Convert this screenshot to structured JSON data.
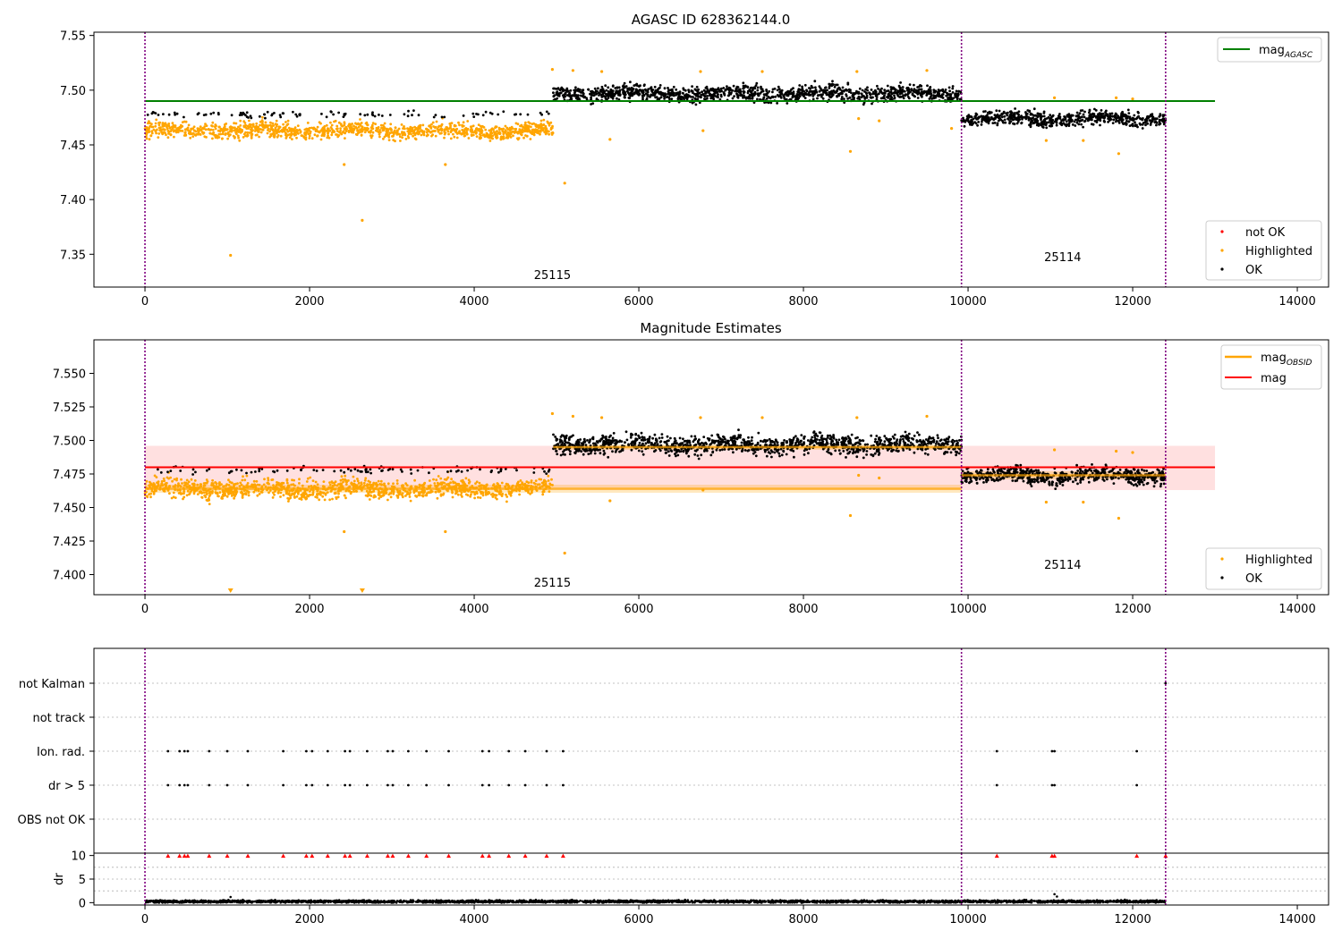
{
  "chart_data": [
    {
      "type": "scatter",
      "title": "AGASC ID 628362144.0",
      "xlabel": "",
      "ylabel": "",
      "xlim": [
        -620,
        14380
      ],
      "ylim": [
        7.32,
        7.553
      ],
      "xticks": [
        0,
        2000,
        4000,
        6000,
        8000,
        10000,
        12000,
        14000
      ],
      "xtick_labels": [
        "0",
        "2000",
        "4000",
        "6000",
        "8000",
        "10000",
        "12000",
        "14000"
      ],
      "yticks": [
        7.35,
        7.4,
        7.45,
        7.5,
        7.55
      ],
      "ytick_labels": [
        "7.35",
        "7.40",
        "7.45",
        "7.50",
        "7.55"
      ],
      "vlines": [
        0,
        9920,
        12400
      ],
      "obsid_labels": [
        {
          "x": 4950,
          "text": "25115"
        },
        {
          "x": 11150,
          "text": "25114"
        }
      ],
      "reference_lines": [
        {
          "name": "mag_AGASC",
          "label_main": "mag",
          "label_sub": "AGASC",
          "value": 7.49,
          "x": [
            0,
            13000
          ],
          "color": "#008000"
        }
      ],
      "segments": [
        {
          "x_range": [
            0,
            4960
          ],
          "center": 7.463,
          "spread": 0.005,
          "color": "orange",
          "upper_black": 7.478
        },
        {
          "x_range": [
            4960,
            9920
          ],
          "center": 7.497,
          "spread": 0.005,
          "color": "black"
        },
        {
          "x_range": [
            9920,
            12400
          ],
          "center": 7.474,
          "spread": 0.0045,
          "color": "black"
        }
      ],
      "highlighted_outliers": [
        [
          1040,
          7.349
        ],
        [
          2640,
          7.381
        ],
        [
          2420,
          7.432
        ],
        [
          3650,
          7.432
        ],
        [
          5100,
          7.415
        ],
        [
          5650,
          7.455
        ],
        [
          6780,
          7.463
        ],
        [
          8570,
          7.444
        ],
        [
          8670,
          7.474
        ],
        [
          8920,
          7.472
        ],
        [
          9800,
          7.465
        ],
        [
          10950,
          7.454
        ],
        [
          11400,
          7.454
        ],
        [
          11830,
          7.442
        ],
        [
          4950,
          7.519
        ],
        [
          5200,
          7.518
        ],
        [
          5550,
          7.517
        ],
        [
          6750,
          7.517
        ],
        [
          7500,
          7.517
        ],
        [
          8650,
          7.517
        ],
        [
          9500,
          7.518
        ],
        [
          11050,
          7.493
        ],
        [
          11800,
          7.493
        ],
        [
          12000,
          7.492
        ]
      ],
      "legend_points": {
        "placement": "lower right",
        "entries": [
          {
            "label": "not OK",
            "color": "#ff0000"
          },
          {
            "label": "Highlighted",
            "color": "#ffa500"
          },
          {
            "label": "OK",
            "color": "#000000"
          }
        ]
      },
      "legend_lines": {
        "placement": "upper right"
      },
      "grid": false
    },
    {
      "type": "scatter",
      "title": "Magnitude Estimates",
      "xlabel": "",
      "ylabel": "",
      "xlim": [
        -620,
        14380
      ],
      "ylim": [
        7.385,
        7.575
      ],
      "xticks": [
        0,
        2000,
        4000,
        6000,
        8000,
        10000,
        12000,
        14000
      ],
      "xtick_labels": [
        "0",
        "2000",
        "4000",
        "6000",
        "8000",
        "10000",
        "12000",
        "14000"
      ],
      "yticks": [
        7.4,
        7.425,
        7.45,
        7.475,
        7.5,
        7.525,
        7.55
      ],
      "ytick_labels": [
        "7.400",
        "7.425",
        "7.450",
        "7.475",
        "7.500",
        "7.525",
        "7.550"
      ],
      "vlines": [
        0,
        9920,
        12400
      ],
      "obsid_labels": [
        {
          "x": 4950,
          "text": "25115"
        },
        {
          "x": 11150,
          "text": "25114"
        }
      ],
      "mag": {
        "value": 7.48,
        "band": [
          7.463,
          7.496
        ],
        "x": [
          0,
          13000
        ],
        "color": "#ff0000"
      },
      "mag_obsid": [
        {
          "x": [
            0,
            9920
          ],
          "value": 7.464,
          "band": [
            7.461,
            7.467
          ]
        },
        {
          "x": [
            4960,
            9920
          ],
          "value": 7.495,
          "band": [
            7.493,
            7.497
          ]
        },
        {
          "x": [
            9920,
            12400
          ],
          "value": 7.474,
          "band": [
            7.471,
            7.477
          ]
        }
      ],
      "segments": [
        {
          "x_range": [
            0,
            4960
          ],
          "center": 7.464,
          "spread": 0.005,
          "color": "orange",
          "upper_black": 7.478
        },
        {
          "x_range": [
            4960,
            9920
          ],
          "center": 7.497,
          "spread": 0.005,
          "color": "black"
        },
        {
          "x_range": [
            9920,
            12400
          ],
          "center": 7.474,
          "spread": 0.0045,
          "color": "black"
        }
      ],
      "highlighted_outliers": [
        [
          2420,
          7.432
        ],
        [
          3650,
          7.432
        ],
        [
          5100,
          7.416
        ],
        [
          5650,
          7.455
        ],
        [
          6780,
          7.463
        ],
        [
          8570,
          7.444
        ],
        [
          8670,
          7.474
        ],
        [
          8920,
          7.472
        ],
        [
          10950,
          7.454
        ],
        [
          11400,
          7.454
        ],
        [
          11830,
          7.442
        ],
        [
          4950,
          7.52
        ],
        [
          5200,
          7.518
        ],
        [
          5550,
          7.517
        ],
        [
          6750,
          7.517
        ],
        [
          7500,
          7.517
        ],
        [
          8650,
          7.517
        ],
        [
          9500,
          7.518
        ],
        [
          11050,
          7.493
        ],
        [
          11800,
          7.492
        ],
        [
          12000,
          7.491
        ]
      ],
      "clipped_markers": [
        1040,
        2640
      ],
      "legend_lines": {
        "placement": "upper right",
        "entries": [
          {
            "label_main": "mag",
            "label_sub": "OBSID",
            "color": "#ffa500"
          },
          {
            "label_main": "mag",
            "label_sub": "",
            "color": "#ff0000"
          }
        ]
      },
      "legend_points": {
        "placement": "lower right",
        "entries": [
          {
            "label": "Highlighted",
            "color": "#ffa500"
          },
          {
            "label": "OK",
            "color": "#000000"
          }
        ]
      },
      "grid": false
    },
    {
      "type": "scatter",
      "title": "",
      "xlim": [
        -620,
        14380
      ],
      "ytick_labels": [
        "not Kalman",
        "not track",
        "Ion. rad.",
        "dr > 5",
        "OBS not OK"
      ],
      "vlines": [
        0,
        9920,
        12400
      ],
      "flag_rows": {
        "not Kalman": [
          12400
        ],
        "not track": [],
        "Ion. rad.": [
          280,
          420,
          480,
          520,
          780,
          1000,
          1250,
          1680,
          1960,
          2030,
          2220,
          2430,
          2490,
          2700,
          2950,
          3010,
          3200,
          3420,
          3690,
          4100,
          4180,
          4420,
          4620,
          4880,
          5080,
          10350,
          11020,
          11050,
          12050
        ],
        "dr > 5": [
          280,
          420,
          480,
          520,
          780,
          1000,
          1250,
          1680,
          1960,
          2030,
          2220,
          2430,
          2490,
          2700,
          2950,
          3010,
          3200,
          3420,
          3690,
          4100,
          4180,
          4420,
          4620,
          4880,
          5080,
          10350,
          11020,
          11050,
          12050
        ],
        "OBS not OK": []
      },
      "grid": true
    },
    {
      "type": "scatter",
      "title": "",
      "xlabel": "",
      "ylabel": "dr",
      "xlim": [
        -620,
        14380
      ],
      "ylim": [
        -0.5,
        10.5
      ],
      "xticks": [
        0,
        2000,
        4000,
        6000,
        8000,
        10000,
        12000,
        14000
      ],
      "xtick_labels": [
        "0",
        "2000",
        "4000",
        "6000",
        "8000",
        "10000",
        "12000",
        "14000"
      ],
      "yticks": [
        0,
        5,
        10
      ],
      "ytick_labels": [
        "0",
        "5",
        "10"
      ],
      "vlines": [
        0,
        9920,
        12400
      ],
      "baseline": {
        "x_range": [
          0,
          12400
        ],
        "center": 0.25,
        "spread": 0.18
      },
      "clipped_markers": [
        280,
        420,
        480,
        520,
        780,
        1000,
        1250,
        1680,
        1960,
        2030,
        2220,
        2430,
        2490,
        2700,
        2950,
        3010,
        3200,
        3420,
        3690,
        4100,
        4180,
        4420,
        4620,
        4880,
        5080,
        10350,
        11020,
        11050,
        12050,
        12400
      ],
      "spikes": [
        [
          1040,
          1.2
        ],
        [
          11050,
          1.8
        ],
        [
          11080,
          1.3
        ]
      ],
      "grid": true
    }
  ]
}
